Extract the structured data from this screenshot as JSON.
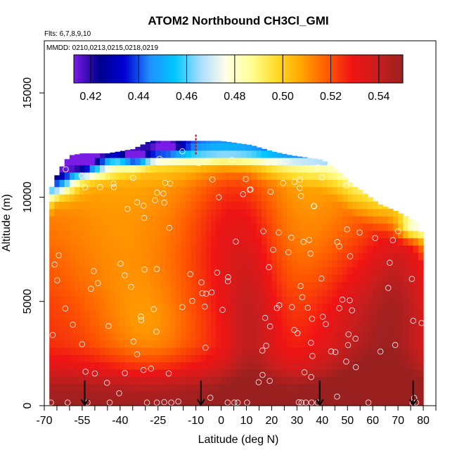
{
  "chart_data": {
    "type": "heatmap",
    "title": "ATOM2 Northbound CH3Cl_GMI",
    "subtitle_flights": "Flts: 6,7,8,9,10",
    "subtitle_dates": "MMDD: 0210,0213,0215,0218,0219",
    "xlabel": "Latitude (deg N)",
    "ylabel": "Altitude (m)",
    "xlim": [
      -70,
      85
    ],
    "ylim": [
      0,
      17500
    ],
    "x_ticks": [
      "-70",
      "-55",
      "-40",
      "-25",
      "-10",
      "0",
      "10",
      "20",
      "30",
      "40",
      "50",
      "60",
      "70",
      "80"
    ],
    "x_tick_values": [
      -70,
      -55,
      -40,
      -25,
      -10,
      0,
      10,
      20,
      30,
      40,
      50,
      60,
      70,
      80
    ],
    "x_minor_ticks": [
      -65,
      -60,
      -50,
      -45,
      -35,
      -30,
      -20,
      -15,
      -5,
      5,
      15,
      25,
      35,
      45,
      55,
      65,
      75,
      85
    ],
    "y_ticks": [
      "0",
      "5000",
      "10000",
      "15000"
    ],
    "y_tick_values": [
      0,
      5000,
      10000,
      15000
    ],
    "colorbar": {
      "min": 0.413,
      "max": 0.55,
      "tick_values": [
        0.42,
        0.44,
        0.46,
        0.48,
        0.5,
        0.52,
        0.54
      ],
      "tick_labels": [
        "0.42",
        "0.44",
        "0.46",
        "0.48",
        "0.50",
        "0.52",
        "0.54"
      ],
      "colors": [
        "#7a1ce6",
        "#00008c",
        "#0000d2",
        "#1e90ff",
        "#00c8ff",
        "#aadcff",
        "#ffffe6",
        "#ffff96",
        "#ffdc28",
        "#ffa500",
        "#ff5a00",
        "#f01414",
        "#c81e1e",
        "#9a2020"
      ]
    },
    "flight_latitude_markers": [
      -54,
      -8,
      39,
      76
    ],
    "altitude_ceiling_marker": {
      "lat": -10,
      "alt_min": 12000,
      "alt_max": 13000
    },
    "field_extent_top_alt": [
      [
        -68,
        10200
      ],
      [
        -66,
        10800
      ],
      [
        -64,
        11300
      ],
      [
        -60,
        12000
      ],
      [
        -55,
        12100
      ],
      [
        -45,
        12100
      ],
      [
        -35,
        12300
      ],
      [
        -28,
        12700
      ],
      [
        -22,
        12700
      ],
      [
        -12,
        12700
      ],
      [
        0,
        12700
      ],
      [
        12,
        12500
      ],
      [
        20,
        12200
      ],
      [
        28,
        12000
      ],
      [
        40,
        11800
      ],
      [
        46,
        11300
      ],
      [
        52,
        10600
      ],
      [
        58,
        10100
      ],
      [
        62,
        9700
      ],
      [
        68,
        9400
      ],
      [
        73,
        9100
      ],
      [
        76,
        8900
      ],
      [
        78,
        8700
      ],
      [
        80,
        8000
      ]
    ],
    "concentration_profile_bands": [
      {
        "alt": 0,
        "value": 0.545
      },
      {
        "alt": 1000,
        "value": 0.543
      },
      {
        "alt": 2000,
        "value": 0.532
      },
      {
        "alt": 3000,
        "value": 0.526
      },
      {
        "alt": 5000,
        "value": 0.524
      },
      {
        "alt": 7000,
        "value": 0.52
      },
      {
        "alt": 9000,
        "value": 0.515
      },
      {
        "alt": 10500,
        "value": 0.51
      },
      {
        "alt": 11500,
        "value": 0.5
      },
      {
        "alt": 12200,
        "value": 0.46
      }
    ],
    "observation_points_count": 150
  }
}
